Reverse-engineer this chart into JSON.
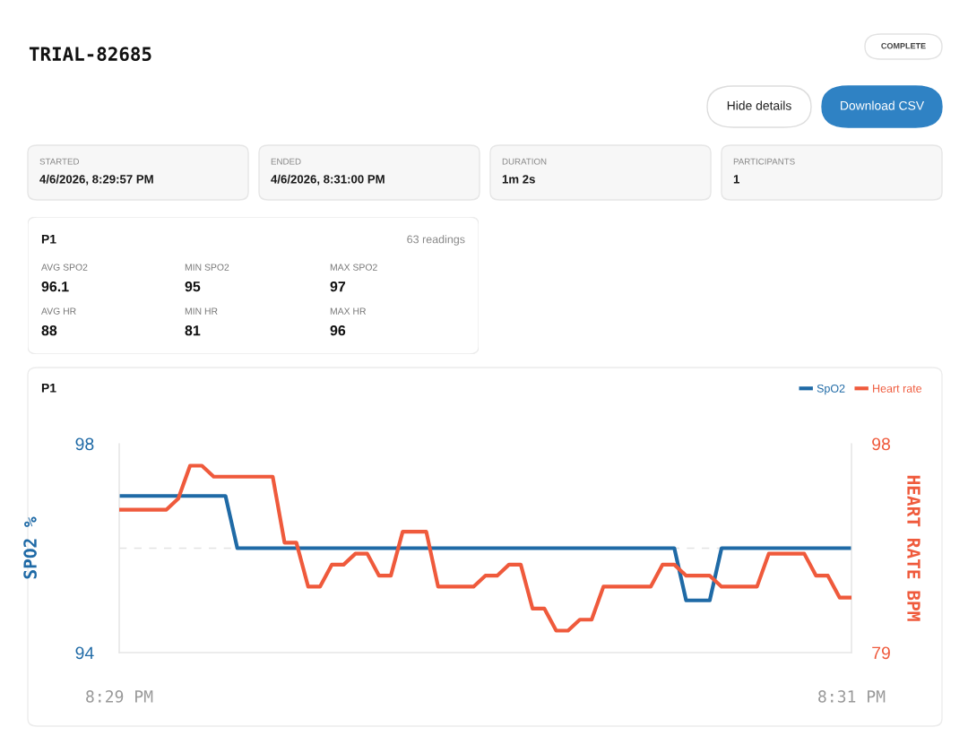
{
  "chart_data": [
    {
      "type": "other",
      "title": "TRIAL-82685",
      "annotations": [
        "COMPLETE",
        "Hide details",
        "Download CSV",
        "STARTED",
        "4/6/2026, 8:29:57 PM",
        "ENDED",
        "4/6/2026, 8:31:00 PM",
        "DURATION",
        "1m 2s",
        "PARTICIPANTS",
        "1"
      ]
    },
    {
      "type": "other",
      "title": "P1",
      "annotations": [
        "63 readings",
        "AVG SPO2",
        "96.1",
        "MIN SPO2",
        "95",
        "MAX SPO2",
        "97",
        "AVG HR",
        "88",
        "MIN HR",
        "81",
        "MAX HR",
        "96"
      ]
    },
    {
      "type": "line",
      "title": "P1",
      "ylabel": "SPO2 %",
      "y2label": "HEART RATE BPM",
      "categories": [
        "8:29 PM",
        null,
        null,
        null,
        null,
        null,
        null,
        null,
        null,
        null,
        null,
        null,
        null,
        null,
        null,
        null,
        null,
        null,
        null,
        null,
        null,
        null,
        null,
        null,
        null,
        null,
        null,
        null,
        null,
        null,
        null,
        null,
        null,
        null,
        null,
        null,
        null,
        null,
        null,
        null,
        null,
        null,
        null,
        null,
        null,
        null,
        null,
        null,
        null,
        null,
        null,
        null,
        null,
        null,
        null,
        null,
        null,
        null,
        null,
        null,
        null,
        null,
        "8:31 PM"
      ],
      "ylim": [
        94,
        98
      ],
      "yticks": [
        94,
        98
      ],
      "y2lim": [
        79,
        98
      ],
      "y2ticks": [
        79,
        98
      ],
      "grid": false,
      "legend": "top right",
      "marker": "none",
      "line_style": "solid",
      "ref_lines": [
        {
          "axis": "y",
          "value": 96,
          "color": "#e3e3e3",
          "line_style": "dashed"
        }
      ],
      "series": [
        {
          "name": "SpO2",
          "color": "#1f6aa6",
          "values": [
            97,
            97,
            97,
            97,
            97,
            97,
            97,
            97,
            97,
            97,
            96,
            96,
            96,
            96,
            96,
            96,
            96,
            96,
            96,
            96,
            96,
            96,
            96,
            96,
            96,
            96,
            96,
            96,
            96,
            96,
            96,
            96,
            96,
            96,
            96,
            96,
            96,
            96,
            96,
            96,
            96,
            96,
            96,
            96,
            96,
            96,
            96,
            96,
            95,
            95,
            95,
            96,
            96,
            96,
            96,
            96,
            96,
            96,
            96,
            96,
            96,
            96,
            96
          ]
        },
        {
          "name": "Heart rate",
          "color": "#ef5a3c",
          "axis": "y2",
          "values": [
            92,
            92,
            92,
            92,
            92,
            93,
            96,
            96,
            95,
            95,
            95,
            95,
            95,
            95,
            89,
            89,
            85,
            85,
            87,
            87,
            88,
            88,
            86,
            86,
            90,
            90,
            90,
            85,
            85,
            85,
            85,
            86,
            86,
            87,
            87,
            83,
            83,
            81,
            81,
            82,
            82,
            85,
            85,
            85,
            85,
            85,
            87,
            87,
            86,
            86,
            86,
            85,
            85,
            85,
            85,
            88,
            88,
            88,
            88,
            86,
            86,
            84,
            84
          ]
        }
      ]
    }
  ]
}
